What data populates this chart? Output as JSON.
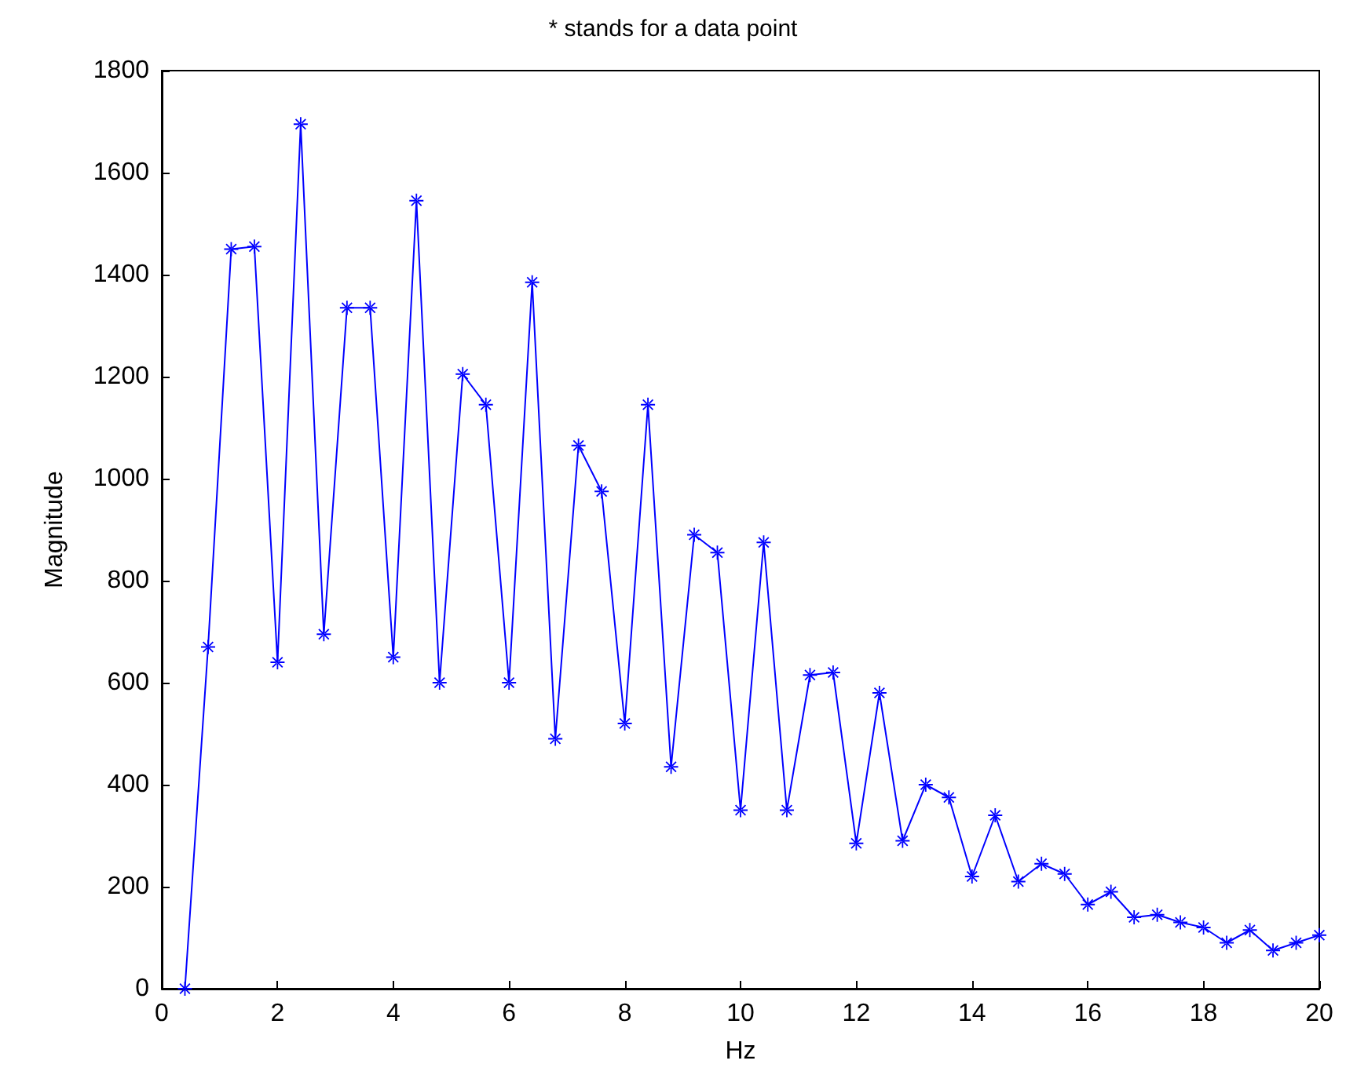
{
  "chart_data": {
    "type": "line",
    "title": "* stands for a data point",
    "xlabel": "Hz",
    "ylabel": "Magnitude",
    "x": [
      0.4,
      0.8,
      1.2,
      1.6,
      2.0,
      2.4,
      2.8,
      3.2,
      3.6,
      4.0,
      4.4,
      4.8,
      5.2,
      5.6,
      6.0,
      6.4,
      6.8,
      7.2,
      7.6,
      8.0,
      8.4,
      8.8,
      9.2,
      9.6,
      10.0,
      10.4,
      10.8,
      11.2,
      11.6,
      12.0,
      12.4,
      12.8,
      13.2,
      13.6,
      14.0,
      14.4,
      14.8,
      15.2,
      15.6,
      16.0,
      16.4,
      16.8,
      17.2,
      17.6,
      18.0,
      18.4,
      18.8,
      19.2,
      19.6,
      20.0
    ],
    "series": [
      {
        "color": "#0000ff",
        "values": [
          0,
          670,
          1450,
          1455,
          640,
          1695,
          695,
          1335,
          1335,
          650,
          1545,
          600,
          1205,
          1145,
          600,
          1385,
          490,
          1065,
          975,
          520,
          1145,
          435,
          890,
          855,
          350,
          875,
          350,
          615,
          620,
          285,
          580,
          290,
          400,
          375,
          220,
          340,
          210,
          245,
          225,
          165,
          190,
          140,
          145,
          130,
          120,
          90,
          115,
          75,
          90,
          105
        ]
      }
    ],
    "xlim": [
      0,
      20
    ],
    "xticks": [
      0,
      2,
      4,
      6,
      8,
      10,
      12,
      14,
      16,
      18,
      20
    ],
    "ylim": [
      0,
      1800
    ],
    "yticks": [
      0,
      200,
      400,
      600,
      800,
      1000,
      1200,
      1400,
      1600,
      1800
    ],
    "grid": false,
    "marker": "cross",
    "line_style": "solid"
  }
}
